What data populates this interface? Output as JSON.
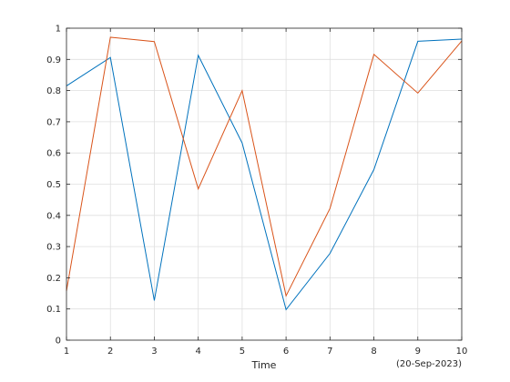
{
  "chart_data": {
    "type": "line",
    "title": "",
    "xlabel": "Time",
    "ylabel": "",
    "date_label": "(20-Sep-2023)",
    "x": [
      1,
      2,
      3,
      4,
      5,
      6,
      7,
      8,
      9,
      10
    ],
    "xlim": [
      1,
      10
    ],
    "ylim": [
      0,
      1
    ],
    "xticks": [
      1,
      2,
      3,
      4,
      5,
      6,
      7,
      8,
      9,
      10
    ],
    "yticks": [
      0,
      0.1,
      0.2,
      0.3,
      0.4,
      0.5,
      0.6,
      0.7,
      0.8,
      0.9,
      1
    ],
    "grid": true,
    "series": [
      {
        "color": "#0072BD",
        "values": [
          0.815,
          0.906,
          0.127,
          0.913,
          0.632,
          0.098,
          0.278,
          0.547,
          0.958,
          0.965
        ]
      },
      {
        "color": "#D95319",
        "values": [
          0.158,
          0.971,
          0.957,
          0.485,
          0.8,
          0.142,
          0.422,
          0.916,
          0.792,
          0.959
        ]
      }
    ]
  }
}
